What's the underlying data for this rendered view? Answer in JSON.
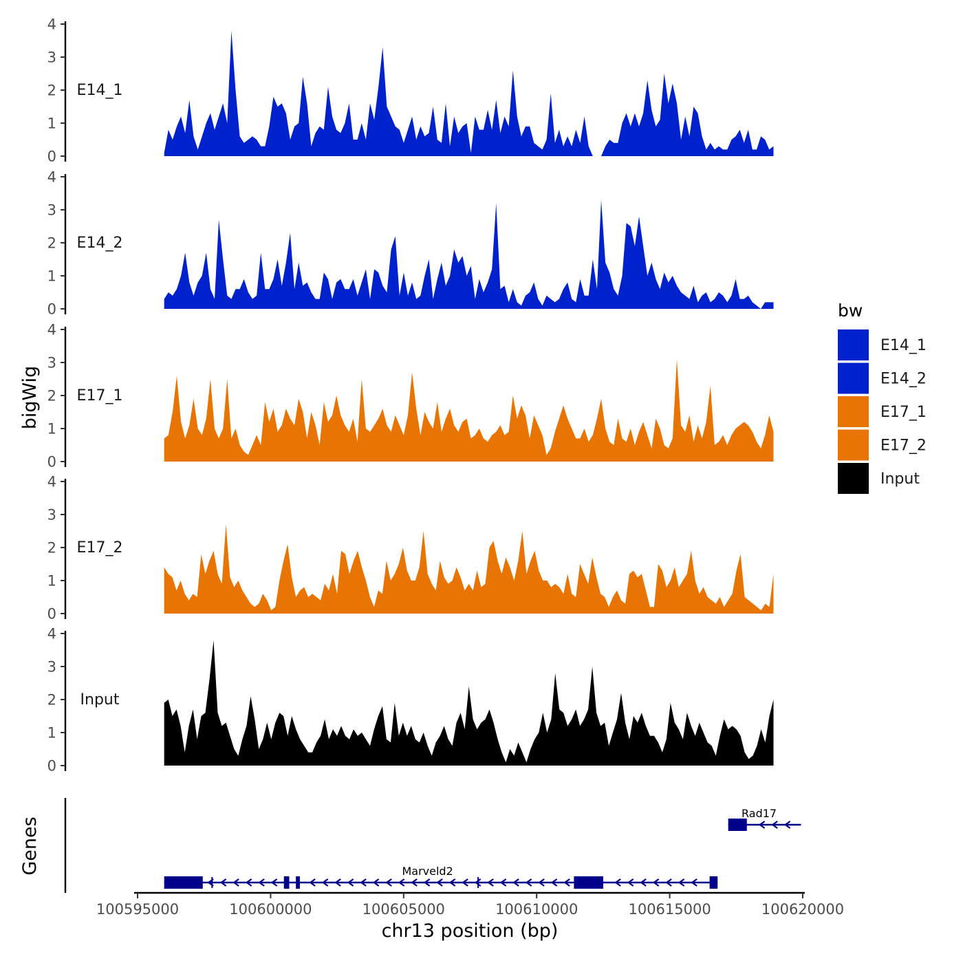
{
  "chart_data": {
    "type": "area",
    "chromosome": "chr13",
    "xlabel": "chr13 position (bp)",
    "ylabel": "bigWig",
    "genes_label": "Genes",
    "xlim": [
      100594500,
      100620000
    ],
    "x_ticks": [
      100595000,
      100600000,
      100605000,
      100610000,
      100615000,
      100620000
    ],
    "x_tick_labels": [
      "100595000",
      "100600000",
      "100605000",
      "100610000",
      "100615000",
      "100620000"
    ],
    "ylim": [
      0,
      4
    ],
    "y_ticks": [
      0,
      1,
      2,
      3,
      4
    ],
    "y_tick_labels": [
      "0",
      "1",
      "2",
      "3",
      "4"
    ],
    "x_start": 100596000,
    "x_end": 100618900,
    "legend": {
      "title": "bw",
      "entries": [
        {
          "label": "E14_1",
          "color": "#0022CC"
        },
        {
          "label": "E14_2",
          "color": "#0022CC"
        },
        {
          "label": "E17_1",
          "color": "#E87404"
        },
        {
          "label": "E17_2",
          "color": "#E87404"
        },
        {
          "label": "Input",
          "color": "#000000"
        }
      ]
    },
    "series": [
      {
        "name": "E14_1",
        "color": "#0022CC",
        "values": [
          0.1,
          0.8,
          0.5,
          0.9,
          1.2,
          0.7,
          1.7,
          0.6,
          0.2,
          0.6,
          1.0,
          1.3,
          0.8,
          1.2,
          1.6,
          1.0,
          3.8,
          2.0,
          0.6,
          0.4,
          0.5,
          0.6,
          0.5,
          0.3,
          0.3,
          0.9,
          1.8,
          1.5,
          1.6,
          1.3,
          0.5,
          0.9,
          1.0,
          2.4,
          1.6,
          0.3,
          0.7,
          0.9,
          0.8,
          2.1,
          1.2,
          0.8,
          0.7,
          1.0,
          1.6,
          0.5,
          0.5,
          1.0,
          0.5,
          1.6,
          1.1,
          2.1,
          3.3,
          1.5,
          1.2,
          0.9,
          0.8,
          0.4,
          0.8,
          1.2,
          0.5,
          0.9,
          0.6,
          0.7,
          1.5,
          0.5,
          0.4,
          1.6,
          0.3,
          1.2,
          0.7,
          0.9,
          1.0,
          0.1,
          1.2,
          0.8,
          0.8,
          1.4,
          0.8,
          1.7,
          0.7,
          1.2,
          0.9,
          2.6,
          1.2,
          0.6,
          0.9,
          0.9,
          0.4,
          0.3,
          0.2,
          0.5,
          1.9,
          0.4,
          0.8,
          0.3,
          0.6,
          0.3,
          0.8,
          0.4,
          1.2,
          0.3,
          0.0,
          0.0,
          0.0,
          0.3,
          0.5,
          0.4,
          0.4,
          1.0,
          1.3,
          0.9,
          1.3,
          0.9,
          1.3,
          2.3,
          1.4,
          0.9,
          1.1,
          2.5,
          1.6,
          2.2,
          1.6,
          0.5,
          1.2,
          0.6,
          1.5,
          1.3,
          0.6,
          0.2,
          0.4,
          0.2,
          0.3,
          0.2,
          0.2,
          0.5,
          0.6,
          0.8,
          0.4,
          0.8,
          0.2,
          0.2,
          0.6,
          0.5,
          0.2,
          0.3
        ]
      },
      {
        "name": "E14_2",
        "color": "#0022CC",
        "values": [
          0.3,
          0.5,
          0.4,
          0.6,
          1.0,
          1.7,
          0.8,
          0.4,
          0.8,
          1.0,
          1.7,
          0.6,
          0.3,
          2.7,
          1.5,
          0.4,
          0.3,
          0.6,
          0.6,
          0.9,
          0.5,
          0.3,
          0.4,
          1.7,
          0.6,
          0.6,
          0.9,
          1.5,
          0.7,
          1.4,
          2.3,
          0.6,
          1.4,
          0.7,
          0.8,
          0.5,
          0.3,
          0.3,
          1.1,
          0.9,
          0.3,
          0.8,
          0.9,
          0.6,
          0.6,
          0.9,
          0.4,
          0.8,
          1.2,
          0.3,
          1.2,
          1.1,
          0.7,
          0.5,
          1.8,
          2.2,
          0.4,
          1.1,
          0.4,
          0.8,
          0.3,
          0.4,
          1.0,
          1.5,
          0.3,
          0.9,
          1.4,
          0.7,
          1.0,
          1.8,
          1.4,
          1.6,
          1.0,
          1.3,
          0.3,
          0.9,
          0.5,
          0.8,
          1.2,
          3.2,
          0.6,
          0.7,
          0.2,
          0.6,
          0.2,
          0.1,
          0.4,
          0.5,
          0.8,
          0.3,
          0.1,
          0.4,
          0.3,
          0.2,
          0.3,
          0.6,
          0.8,
          0.3,
          0.2,
          0.9,
          0.4,
          0.4,
          1.5,
          0.6,
          3.3,
          1.4,
          1.1,
          0.6,
          0.4,
          1.0,
          2.6,
          2.5,
          1.9,
          2.8,
          1.9,
          1.0,
          1.4,
          0.9,
          0.6,
          1.1,
          0.8,
          1.0,
          0.7,
          0.5,
          0.4,
          0.3,
          0.7,
          0.2,
          0.4,
          0.5,
          0.2,
          0.3,
          0.5,
          0.4,
          0.2,
          0.4,
          0.9,
          0.3,
          0.3,
          0.4,
          0.2,
          0.1,
          0.0,
          0.2,
          0.2,
          0.2
        ]
      },
      {
        "name": "E17_1",
        "color": "#E87404",
        "values": [
          0.7,
          0.8,
          1.5,
          2.6,
          1.2,
          0.7,
          1.1,
          1.9,
          1.0,
          0.8,
          1.3,
          2.5,
          1.0,
          0.7,
          1.0,
          2.5,
          0.7,
          1.0,
          0.5,
          0.3,
          0.2,
          0.5,
          0.8,
          0.5,
          1.8,
          1.2,
          1.6,
          0.9,
          1.1,
          1.6,
          1.3,
          1.1,
          1.9,
          1.5,
          0.7,
          1.5,
          1.1,
          0.5,
          1.8,
          1.2,
          1.4,
          2.0,
          1.4,
          1.1,
          0.9,
          1.3,
          0.6,
          2.5,
          1.0,
          0.9,
          1.1,
          1.3,
          1.6,
          1.1,
          0.9,
          1.4,
          1.1,
          0.8,
          1.4,
          2.7,
          1.6,
          0.8,
          1.5,
          1.2,
          1.0,
          1.8,
          0.9,
          1.3,
          1.6,
          1.1,
          0.9,
          1.2,
          1.3,
          0.7,
          0.8,
          1.0,
          0.7,
          0.6,
          0.8,
          0.9,
          1.1,
          0.8,
          0.9,
          2.0,
          1.3,
          1.7,
          1.4,
          0.7,
          1.4,
          1.1,
          0.8,
          0.2,
          0.4,
          0.9,
          1.3,
          1.7,
          1.3,
          1.0,
          0.7,
          0.7,
          1.0,
          0.6,
          0.8,
          1.3,
          1.9,
          1.0,
          0.6,
          0.5,
          1.3,
          0.7,
          0.6,
          1.0,
          0.5,
          0.9,
          1.2,
          0.8,
          0.4,
          1.3,
          1.0,
          0.5,
          0.4,
          0.7,
          3.1,
          1.1,
          0.9,
          1.4,
          0.6,
          1.1,
          0.7,
          1.2,
          2.3,
          0.5,
          0.6,
          0.8,
          0.5,
          0.8,
          1.0,
          1.1,
          1.2,
          1.1,
          0.9,
          0.6,
          0.4,
          0.8,
          1.4,
          0.9
        ]
      },
      {
        "name": "E17_2",
        "color": "#E87404",
        "values": [
          1.4,
          1.2,
          1.1,
          0.7,
          1.0,
          0.6,
          0.4,
          0.6,
          0.5,
          1.8,
          1.2,
          1.6,
          1.9,
          1.2,
          0.9,
          2.7,
          1.1,
          0.8,
          1.0,
          0.7,
          0.5,
          0.3,
          0.2,
          0.3,
          0.6,
          0.4,
          0.1,
          0.2,
          1.0,
          1.6,
          2.1,
          1.1,
          0.5,
          0.7,
          0.8,
          0.5,
          0.6,
          0.5,
          0.4,
          0.9,
          0.7,
          1.2,
          0.6,
          1.9,
          1.8,
          1.2,
          1.6,
          1.9,
          1.4,
          1.0,
          0.5,
          0.2,
          0.7,
          0.6,
          1.6,
          1.0,
          1.2,
          1.5,
          2.0,
          1.3,
          1.0,
          1.0,
          1.4,
          2.5,
          1.2,
          0.9,
          0.7,
          1.6,
          1.1,
          0.9,
          1.0,
          1.4,
          1.1,
          0.7,
          0.9,
          0.7,
          1.3,
          0.8,
          0.9,
          2.0,
          2.2,
          1.6,
          1.2,
          1.7,
          1.4,
          1.0,
          1.6,
          2.5,
          1.2,
          1.6,
          1.9,
          1.3,
          1.0,
          1.0,
          0.8,
          0.9,
          0.8,
          0.6,
          1.2,
          0.6,
          0.5,
          1.5,
          1.2,
          0.9,
          1.7,
          1.1,
          0.6,
          0.5,
          0.2,
          0.5,
          0.7,
          0.4,
          0.3,
          1.2,
          1.3,
          1.1,
          1.2,
          0.7,
          0.2,
          0.2,
          1.5,
          1.3,
          0.8,
          1.0,
          1.4,
          0.8,
          1.0,
          1.2,
          1.9,
          1.0,
          0.6,
          0.8,
          0.5,
          0.4,
          0.3,
          0.5,
          0.2,
          0.4,
          0.6,
          1.3,
          1.8,
          0.5,
          0.4,
          0.3,
          0.2,
          0.1,
          0.3,
          0.2,
          1.2
        ]
      },
      {
        "name": "Input",
        "color": "#000000",
        "values": [
          1.9,
          2.0,
          1.5,
          1.7,
          1.2,
          0.4,
          1.2,
          1.7,
          0.8,
          1.5,
          1.6,
          2.6,
          3.8,
          1.6,
          1.2,
          1.3,
          0.9,
          0.5,
          0.3,
          0.8,
          1.2,
          2.1,
          1.4,
          0.5,
          0.8,
          1.3,
          0.8,
          1.3,
          1.6,
          1.5,
          0.9,
          1.5,
          1.1,
          0.8,
          0.6,
          0.4,
          0.4,
          0.7,
          0.9,
          1.4,
          0.8,
          1.1,
          0.9,
          1.2,
          0.9,
          0.8,
          1.1,
          0.9,
          1.0,
          0.8,
          0.6,
          1.1,
          1.5,
          1.8,
          0.8,
          0.7,
          1.9,
          0.9,
          1.3,
          0.9,
          1.2,
          0.8,
          0.7,
          1.0,
          0.6,
          0.3,
          0.7,
          0.9,
          1.2,
          0.8,
          0.6,
          1.3,
          1.6,
          1.1,
          2.4,
          1.4,
          1.1,
          1.3,
          1.4,
          1.7,
          1.3,
          0.8,
          0.4,
          0.1,
          0.5,
          0.3,
          0.7,
          0.4,
          0.1,
          0.5,
          0.8,
          1.0,
          1.6,
          1.0,
          1.4,
          2.8,
          1.7,
          1.6,
          1.2,
          1.4,
          1.7,
          1.2,
          1.4,
          1.7,
          3.0,
          1.6,
          1.2,
          1.3,
          0.6,
          1.0,
          1.4,
          2.2,
          1.3,
          0.8,
          1.5,
          1.3,
          1.6,
          1.2,
          0.9,
          0.9,
          0.7,
          0.4,
          0.8,
          1.9,
          1.3,
          1.1,
          0.8,
          1.6,
          1.2,
          0.9,
          1.3,
          1.0,
          0.7,
          0.6,
          0.3,
          0.9,
          1.4,
          1.1,
          1.2,
          1.1,
          0.9,
          0.4,
          0.2,
          0.3,
          0.6,
          1.1,
          0.7,
          1.5,
          2.0
        ]
      }
    ],
    "genes": [
      {
        "name": "Marveld2",
        "start": 100596000,
        "end": 100616800,
        "strand": "-",
        "exons": [
          [
            100596000,
            100597450
          ],
          [
            100600500,
            100600700
          ],
          [
            100600950,
            100601100
          ],
          [
            100611400,
            100612500
          ],
          [
            100616500,
            100616800
          ]
        ],
        "introns_marks": [
          100597800,
          100607800
        ]
      },
      {
        "name": "Rad17",
        "start": 100617200,
        "end": 100618900,
        "strand": "-",
        "exons": [
          [
            100617200,
            100617900
          ]
        ],
        "introns_marks": []
      }
    ]
  }
}
